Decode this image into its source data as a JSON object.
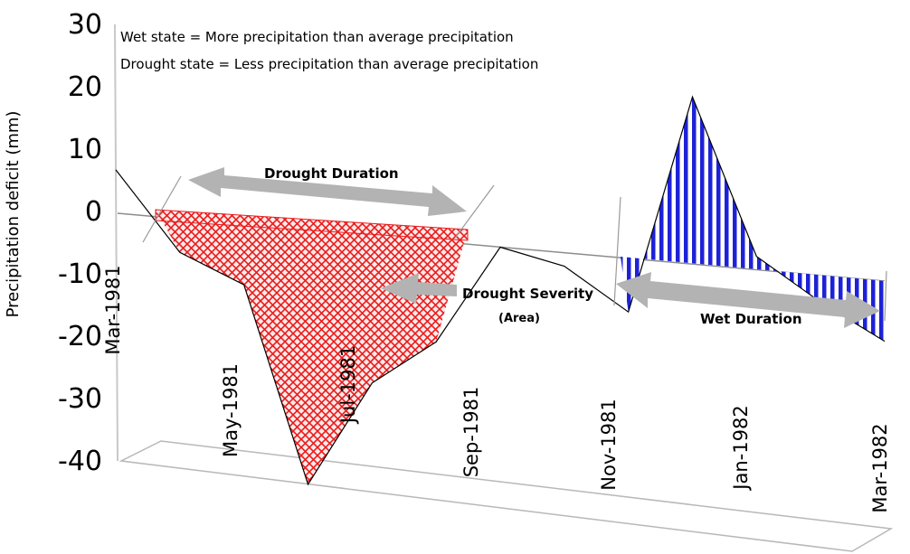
{
  "chart_data": {
    "type": "area",
    "title": "",
    "xlabel": "",
    "ylabel": "Precipitation deficit (mm)",
    "ylim": [
      -40,
      30
    ],
    "yticks": [
      "30",
      "20",
      "10",
      "0",
      "-10",
      "-20",
      "-30",
      "-40"
    ],
    "xticks": [
      "Mar-1981",
      "May-1981",
      "Jul-1981",
      "Sep-1981",
      "Nov-1981",
      "Jan-1982",
      "Mar-1982"
    ],
    "x": [
      "Mar-1981",
      "Apr-1981",
      "May-1981",
      "Jun-1981",
      "Jul-1981",
      "Aug-1981",
      "Sep-1981",
      "Oct-1981",
      "Nov-1981",
      "Dec-1981",
      "Jan-1982",
      "Feb-1982",
      "Mar-1982"
    ],
    "series": [
      {
        "values": [
          6.5,
          -5,
          -9,
          -38,
          -22,
          -15,
          0,
          -2,
          -8,
          25,
          2,
          -4,
          -9
        ]
      }
    ],
    "grid": false,
    "legend": "none",
    "notes": [
      "Wet state = More precipitation than average precipitation",
      "Drought state = Less precipitation than average precipitation"
    ],
    "annotations": {
      "drought_duration": "Drought Duration",
      "drought_severity": "Drought Severity",
      "drought_severity_sub": "(Area)",
      "wet_duration": "Wet Duration"
    },
    "colors": {
      "drought_fill": "#e81c1c",
      "wet_fill": "#1d22d8",
      "arrow": "#b3b3b3",
      "line": "#000000"
    }
  }
}
